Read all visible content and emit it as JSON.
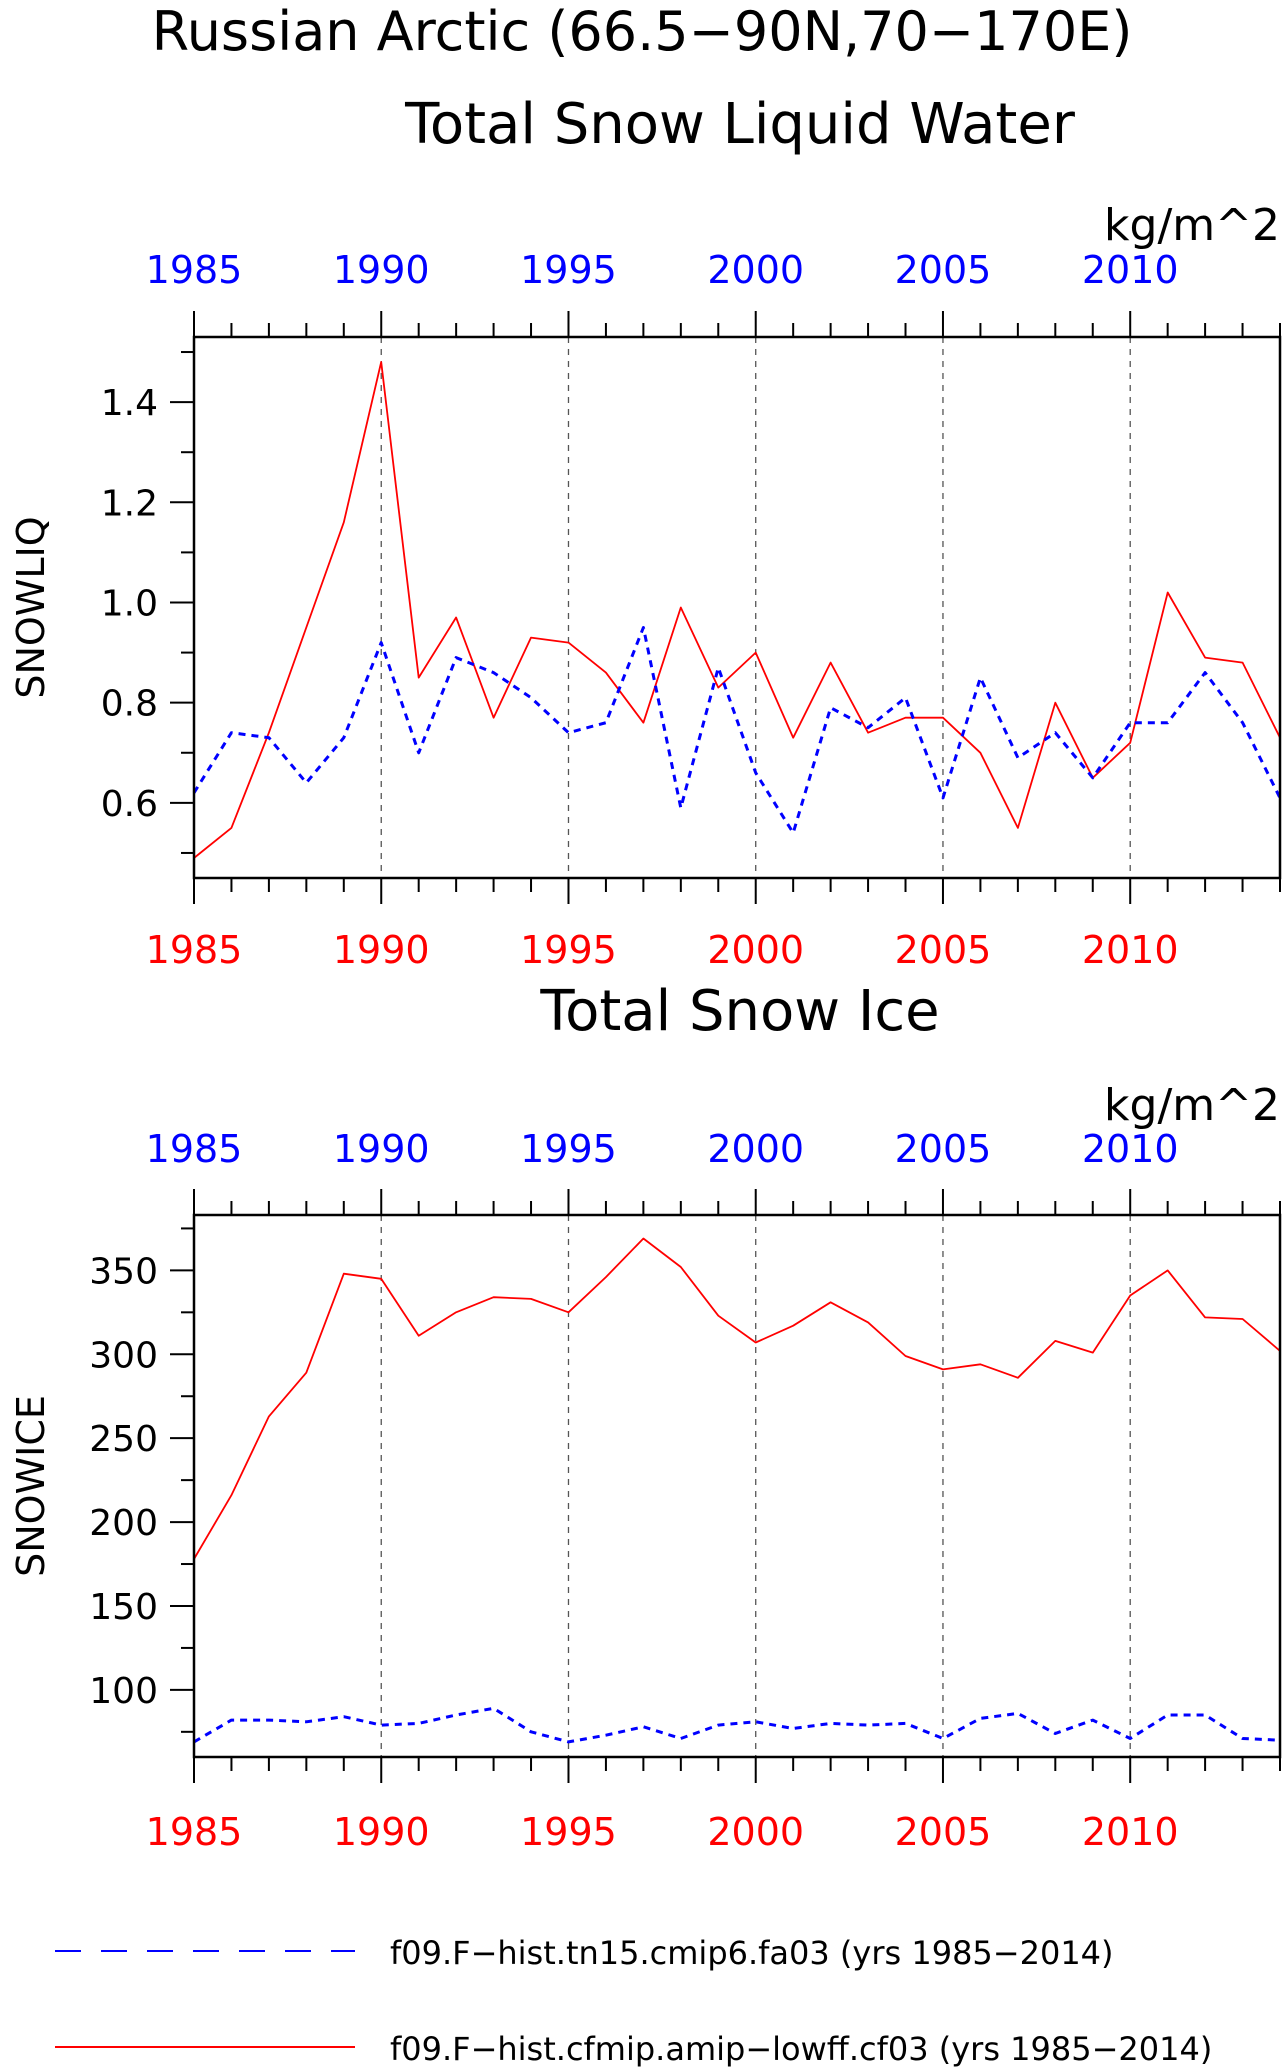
{
  "figure": {
    "title": "Russian Arctic (66.5−90N,70−170E)",
    "colors": {
      "red": "#ff0000",
      "blue": "#0000ff",
      "axis": "#000000"
    }
  },
  "legend": {
    "items": [
      {
        "label": "f09.F−hist.tn15.cmip6.fa03 (yrs 1985−2014)",
        "color": "#0000ff",
        "style": "dashed"
      },
      {
        "label": "f09.F−hist.cfmip.amip−lowff.cf03 (yrs 1985−2014)",
        "color": "#ff0000",
        "style": "solid"
      }
    ]
  },
  "chart_data": [
    {
      "type": "line",
      "title": "Total Snow Liquid Water",
      "units": "kg/m^2",
      "ylabel": "SNOWLIQ",
      "xlabel": "",
      "xlim": [
        1985,
        2014
      ],
      "ylim": [
        0.45,
        1.53
      ],
      "yticks": [
        0.6,
        0.8,
        1.0,
        1.2,
        1.4
      ],
      "ytick_labels": [
        "0.6",
        "0.8",
        "1.0",
        "1.2",
        "1.4"
      ],
      "xticks": [
        1985,
        1990,
        1995,
        2000,
        2005,
        2010
      ],
      "xtick_labels": [
        "1985",
        "1990",
        "1995",
        "2000",
        "2005",
        "2010"
      ],
      "top_xtick_labels": [
        "1985",
        "1990",
        "1995",
        "2000",
        "2005",
        "2010"
      ],
      "grid": "vertical dashed at labeled years",
      "x": [
        1985,
        1986,
        1987,
        1988,
        1989,
        1990,
        1991,
        1992,
        1993,
        1994,
        1995,
        1996,
        1997,
        1998,
        1999,
        2000,
        2001,
        2002,
        2003,
        2004,
        2005,
        2006,
        2007,
        2008,
        2009,
        2010,
        2011,
        2012,
        2013,
        2014
      ],
      "series": [
        {
          "color": "#ff0000",
          "style": "solid",
          "values": [
            0.49,
            0.55,
            0.74,
            0.95,
            1.16,
            1.48,
            0.85,
            0.97,
            0.77,
            0.93,
            0.92,
            0.86,
            0.76,
            0.99,
            0.83,
            0.9,
            0.73,
            0.88,
            0.74,
            0.77,
            0.77,
            0.7,
            0.55,
            0.8,
            0.65,
            0.72,
            1.02,
            0.89,
            0.88,
            0.73
          ]
        },
        {
          "color": "#0000ff",
          "style": "dashed",
          "values": [
            0.62,
            0.74,
            0.73,
            0.64,
            0.73,
            0.92,
            0.7,
            0.89,
            0.86,
            0.81,
            0.74,
            0.76,
            0.95,
            0.59,
            0.87,
            0.66,
            0.54,
            0.79,
            0.75,
            0.81,
            0.61,
            0.85,
            0.69,
            0.74,
            0.65,
            0.76,
            0.76,
            0.86,
            0.76,
            0.61
          ]
        }
      ]
    },
    {
      "type": "line",
      "title": "Total Snow Ice",
      "units": "kg/m^2",
      "ylabel": "SNOWICE",
      "xlabel": "",
      "xlim": [
        1985,
        2014
      ],
      "ylim": [
        60,
        383
      ],
      "yticks": [
        100,
        150,
        200,
        250,
        300,
        350
      ],
      "ytick_labels": [
        "100",
        "150",
        "200",
        "250",
        "300",
        "350"
      ],
      "xticks": [
        1985,
        1990,
        1995,
        2000,
        2005,
        2010
      ],
      "xtick_labels": [
        "1985",
        "1990",
        "1995",
        "2000",
        "2005",
        "2010"
      ],
      "top_xtick_labels": [
        "1985",
        "1990",
        "1995",
        "2000",
        "2005",
        "2010"
      ],
      "grid": "vertical dashed at labeled years",
      "x": [
        1985,
        1986,
        1987,
        1988,
        1989,
        1990,
        1991,
        1992,
        1993,
        1994,
        1995,
        1996,
        1997,
        1998,
        1999,
        2000,
        2001,
        2002,
        2003,
        2004,
        2005,
        2006,
        2007,
        2008,
        2009,
        2010,
        2011,
        2012,
        2013,
        2014
      ],
      "series": [
        {
          "color": "#ff0000",
          "style": "solid",
          "values": [
            178,
            216,
            263,
            289,
            348,
            345,
            311,
            325,
            334,
            333,
            325,
            346,
            369,
            352,
            323,
            307,
            317,
            331,
            319,
            299,
            291,
            294,
            286,
            308,
            301,
            335,
            350,
            322,
            321,
            302
          ]
        },
        {
          "color": "#0000ff",
          "style": "dashed",
          "values": [
            69,
            82,
            82,
            81,
            84,
            79,
            80,
            85,
            89,
            75,
            69,
            73,
            78,
            71,
            79,
            81,
            77,
            80,
            79,
            80,
            71,
            83,
            86,
            74,
            82,
            71,
            85,
            85,
            71,
            70
          ]
        }
      ]
    }
  ]
}
